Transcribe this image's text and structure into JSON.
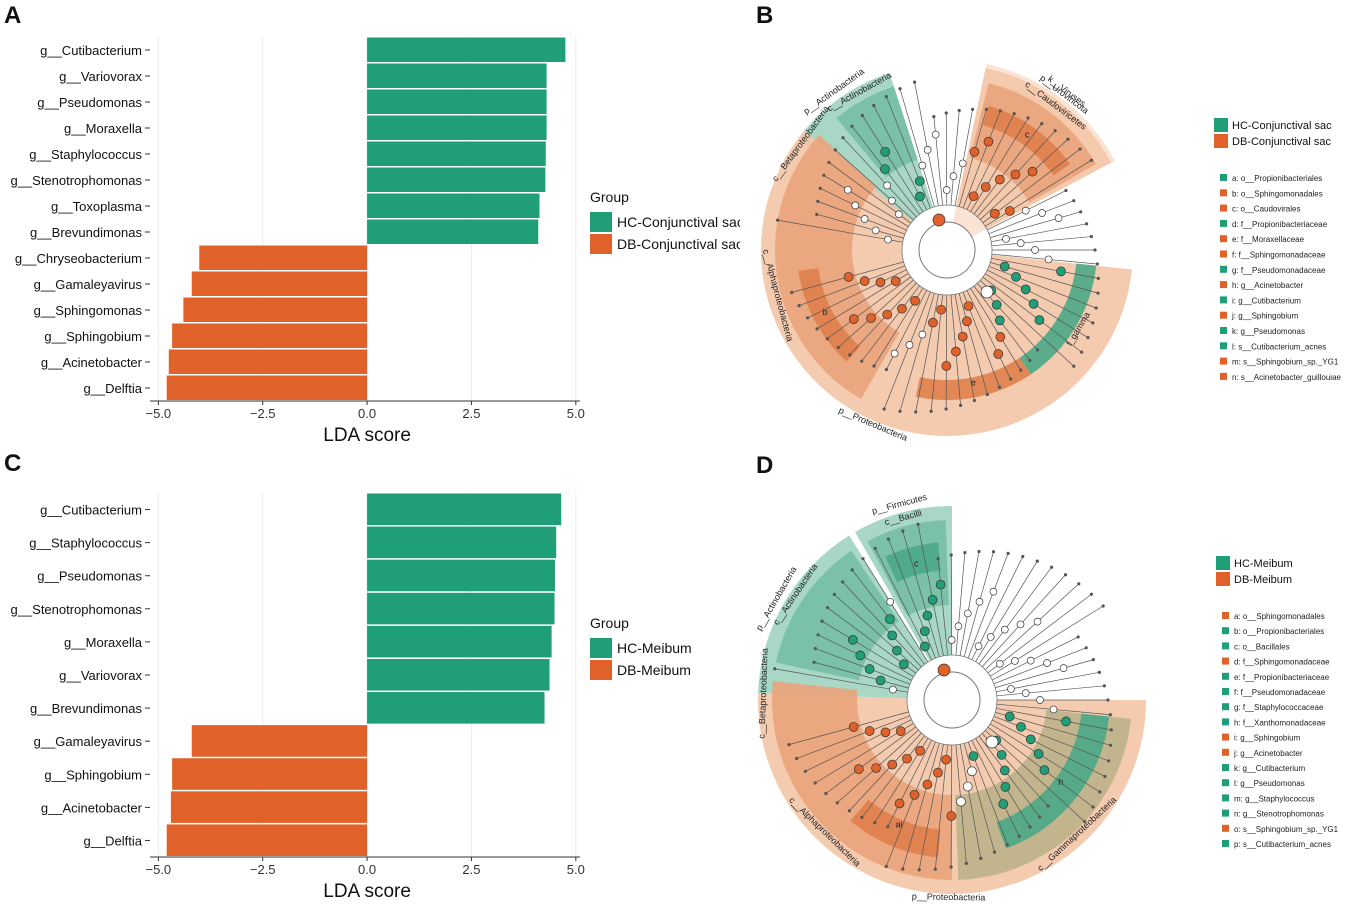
{
  "panels": {
    "a": "A",
    "b": "B",
    "c": "C",
    "d": "D"
  },
  "colors": {
    "hc": "#1f9e78",
    "db": "#e0622a",
    "grid": "#ebebeb",
    "axis": "#333333"
  },
  "chart_data": [
    {
      "type": "bar",
      "orientation": "horizontal",
      "panel": "A",
      "title": "",
      "xlabel": "LDA score",
      "ylabel": "",
      "xlim": [
        -5.2,
        5.1
      ],
      "xticks": [
        -5.0,
        -2.5,
        0.0,
        2.5,
        5.0
      ],
      "xtick_labels": [
        "−5.0",
        "−2.5",
        "0.0",
        "2.5",
        "5.0"
      ],
      "legend": {
        "title": "Group",
        "position": "right",
        "entries": [
          "HC-Conjunctival sac",
          "DB-Conjunctival sac"
        ]
      },
      "categories": [
        "g__Cutibacterium",
        "g__Variovorax",
        "g__Pseudomonas",
        "g__Moraxella",
        "g__Staphylococcus",
        "g__Stenotrophomonas",
        "g__Toxoplasma",
        "g__Brevundimonas",
        "g__Chryseobacterium",
        "g__Gamaleyavirus",
        "g__Sphingomonas",
        "g__Sphingobium",
        "g__Acinetobacter",
        "g__Delftia"
      ],
      "values": [
        4.75,
        4.3,
        4.3,
        4.3,
        4.28,
        4.27,
        4.13,
        4.1,
        -4.02,
        -4.2,
        -4.4,
        -4.67,
        -4.75,
        -4.8
      ],
      "groups": [
        "HC-Conjunctival sac",
        "HC-Conjunctival sac",
        "HC-Conjunctival sac",
        "HC-Conjunctival sac",
        "HC-Conjunctival sac",
        "HC-Conjunctival sac",
        "HC-Conjunctival sac",
        "HC-Conjunctival sac",
        "DB-Conjunctival sac",
        "DB-Conjunctival sac",
        "DB-Conjunctival sac",
        "DB-Conjunctival sac",
        "DB-Conjunctival sac",
        "DB-Conjunctival sac"
      ]
    },
    {
      "type": "bar",
      "orientation": "horizontal",
      "panel": "C",
      "title": "",
      "xlabel": "LDA score",
      "ylabel": "",
      "xlim": [
        -5.2,
        5.1
      ],
      "xticks": [
        -5.0,
        -2.5,
        0.0,
        2.5,
        5.0
      ],
      "xtick_labels": [
        "−5.0",
        "−2.5",
        "0.0",
        "2.5",
        "5.0"
      ],
      "legend": {
        "title": "Group",
        "position": "right",
        "entries": [
          "HC-Meibum",
          "DB-Meibum"
        ]
      },
      "categories": [
        "g__Cutibacterium",
        "g__Staphylococcus",
        "g__Pseudomonas",
        "g__Stenotrophomonas",
        "g__Moraxella",
        "g__Variovorax",
        "g__Brevundimonas",
        "g__Gamaleyavirus",
        "g__Sphingobium",
        "g__Acinetobacter",
        "g__Delftia"
      ],
      "values": [
        4.65,
        4.53,
        4.5,
        4.49,
        4.42,
        4.37,
        4.25,
        -4.2,
        -4.67,
        -4.7,
        -4.8
      ],
      "groups": [
        "HC-Meibum",
        "HC-Meibum",
        "HC-Meibum",
        "HC-Meibum",
        "HC-Meibum",
        "HC-Meibum",
        "HC-Meibum",
        "DB-Meibum",
        "DB-Meibum",
        "DB-Meibum",
        "DB-Meibum"
      ]
    }
  ],
  "cladograms": [
    {
      "panel": "B",
      "groups": [
        "HC-Conjunctival sac",
        "DB-Conjunctival sac"
      ],
      "sectors": [
        {
          "label": "p__Actinobacteria",
          "group": "hc",
          "depth": 1,
          "start": -53,
          "end": -18
        },
        {
          "label": "c__Actinobacteria",
          "group": "hc",
          "depth": 2,
          "start": -40,
          "end": -18
        },
        {
          "label": "k__Viruses",
          "group": "db",
          "depth": 0,
          "start": 12,
          "end": 62
        },
        {
          "label": "p__Uroviricota",
          "group": "db",
          "depth": 1,
          "start": 12,
          "end": 62
        },
        {
          "label": "c__Caudoviricetes",
          "group": "db",
          "depth": 2,
          "start": 14,
          "end": 60
        },
        {
          "label": "c",
          "group": "db",
          "depth": 3,
          "start": 16,
          "end": 55
        },
        {
          "label": "p__Proteobacteria",
          "group": "db",
          "depth": 1,
          "start": 96,
          "end": 310
        },
        {
          "label": "c__Alphaproteobacteria",
          "group": "db",
          "depth": 2,
          "start": 210,
          "end": 300
        },
        {
          "label": "c__Betaproteobacteria",
          "group": "db",
          "depth": 2,
          "start": 300,
          "end": 312
        },
        {
          "label": "f_gamma",
          "group": "hc",
          "depth": 3,
          "start": 96,
          "end": 146
        },
        {
          "label": "e",
          "group": "db",
          "depth": 3,
          "start": 146,
          "end": 192
        },
        {
          "label": "b",
          "group": "db",
          "depth": 3,
          "start": 222,
          "end": 262
        }
      ],
      "legend_items": [
        {
          "text": "a: o__Propionibacteriales",
          "group": "hc"
        },
        {
          "text": "b: o__Sphingomonadales",
          "group": "db"
        },
        {
          "text": "c: o__Caudovirales",
          "group": "db"
        },
        {
          "text": "d: f__Propionibacteriaceae",
          "group": "hc"
        },
        {
          "text": "e: f__Moraxellaceae",
          "group": "db"
        },
        {
          "text": "f: f__Sphingomonadaceae",
          "group": "db"
        },
        {
          "text": "g: f__Pseudomonadaceae",
          "group": "hc"
        },
        {
          "text": "h: g__Acinetobacter",
          "group": "db"
        },
        {
          "text": "i: g__Cutibacterium",
          "group": "hc"
        },
        {
          "text": "j: g__Sphingobium",
          "group": "db"
        },
        {
          "text": "k: g__Pseudomonas",
          "group": "hc"
        },
        {
          "text": "l: s__Cutibacterium_acnes",
          "group": "hc"
        },
        {
          "text": "m: s__Sphingobium_sp._YG1",
          "group": "db"
        },
        {
          "text": "n: s__Acinetobacter_guillouiae",
          "group": "db"
        }
      ]
    },
    {
      "panel": "D",
      "groups": [
        "HC-Meibum",
        "DB-Meibum"
      ],
      "sectors": [
        {
          "label": "p__Firmicutes",
          "group": "hc",
          "depth": 1,
          "start": -30,
          "end": 0
        },
        {
          "label": "c__Bacilli",
          "group": "hc",
          "depth": 2,
          "start": -28,
          "end": -2
        },
        {
          "label": "c",
          "group": "hc",
          "depth": 3,
          "start": -25,
          "end": -5
        },
        {
          "label": "p__Actinobacteria",
          "group": "hc",
          "depth": 1,
          "start": -88,
          "end": -32
        },
        {
          "label": "c__Actinobacteria",
          "group": "hc",
          "depth": 2,
          "start": -78,
          "end": -34
        },
        {
          "label": "p__Proteobacteria",
          "group": "db",
          "depth": 1,
          "start": 90,
          "end": 272
        },
        {
          "label": "c__Alphaproteobacteria",
          "group": "db",
          "depth": 2,
          "start": 180,
          "end": 268
        },
        {
          "label": "c__Gammaproteobacteria",
          "group": "olive",
          "depth": 2,
          "start": 96,
          "end": 178
        },
        {
          "label": "h",
          "group": "hc",
          "depth": 3,
          "start": 96,
          "end": 160
        },
        {
          "label": "ai",
          "group": "db",
          "depth": 3,
          "start": 185,
          "end": 220
        },
        {
          "label": "c__Betaproteobacteria",
          "group": "db",
          "depth": 2,
          "start": 268,
          "end": 276
        }
      ],
      "legend_items": [
        {
          "text": "a: o__Sphingomonadales",
          "group": "db"
        },
        {
          "text": "b: o__Propionibacteriales",
          "group": "hc"
        },
        {
          "text": "c: o__Bacillales",
          "group": "hc"
        },
        {
          "text": "d: f__Sphingomonadaceae",
          "group": "db"
        },
        {
          "text": "e: f__Propionibacteriaceae",
          "group": "hc"
        },
        {
          "text": "f: f__Pseudomonadaceae",
          "group": "hc"
        },
        {
          "text": "g: f__Staphylococcaceae",
          "group": "hc"
        },
        {
          "text": "h: f__Xanthomonadaceae",
          "group": "hc"
        },
        {
          "text": "i: g__Sphingobium",
          "group": "db"
        },
        {
          "text": "j: g__Acinetobacter",
          "group": "db"
        },
        {
          "text": "k: g__Cutibacterium",
          "group": "hc"
        },
        {
          "text": "l: g__Pseudomonas",
          "group": "hc"
        },
        {
          "text": "m: g__Staphylococcus",
          "group": "hc"
        },
        {
          "text": "n: g__Stenotrophomonas",
          "group": "hc"
        },
        {
          "text": "o: s__Sphingobium_sp._YG1",
          "group": "db"
        },
        {
          "text": "p: s__Cutibacterium_acnes",
          "group": "hc"
        }
      ]
    }
  ]
}
